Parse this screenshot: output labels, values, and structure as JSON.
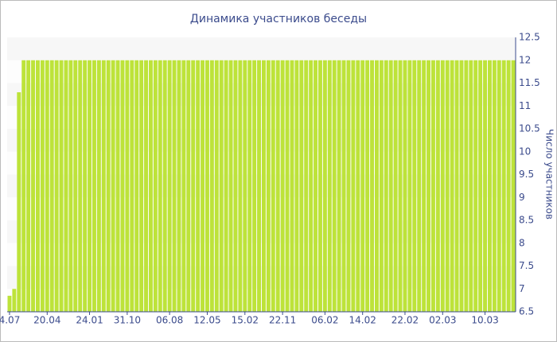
{
  "chart_data": {
    "type": "bar",
    "title": "Динамика участников беседы",
    "y_label": "Число участников",
    "categories": [
      "4.07",
      null,
      null,
      null,
      null,
      null,
      null,
      null,
      "20.04",
      null,
      null,
      null,
      null,
      null,
      null,
      null,
      null,
      "24.01",
      null,
      null,
      null,
      null,
      null,
      null,
      null,
      "31.10",
      null,
      null,
      null,
      null,
      null,
      null,
      null,
      null,
      "06.08",
      null,
      null,
      null,
      null,
      null,
      null,
      null,
      "12.05",
      null,
      null,
      null,
      null,
      null,
      null,
      null,
      "15.02",
      null,
      null,
      null,
      null,
      null,
      null,
      null,
      "22.11",
      null,
      null,
      null,
      null,
      null,
      null,
      null,
      null,
      "06.02",
      null,
      null,
      null,
      null,
      null,
      null,
      null,
      "14.02",
      null,
      null,
      null,
      null,
      null,
      null,
      null,
      null,
      "22.02",
      null,
      null,
      null,
      null,
      null,
      null,
      null,
      "02.03",
      null,
      null,
      null,
      null,
      null,
      null,
      null,
      null,
      "10.03",
      null,
      null,
      null,
      null,
      null,
      null
    ],
    "values": [
      6.85,
      7,
      11.3,
      12,
      12,
      12,
      12,
      12,
      12,
      12,
      12,
      12,
      12,
      12,
      12,
      12,
      12,
      12,
      12,
      12,
      12,
      12,
      12,
      12,
      12,
      12,
      12,
      12,
      12,
      12,
      12,
      12,
      12,
      12,
      12,
      12,
      12,
      12,
      12,
      12,
      12,
      12,
      12,
      12,
      12,
      12,
      12,
      12,
      12,
      12,
      12,
      12,
      12,
      12,
      12,
      12,
      12,
      12,
      12,
      12,
      12,
      12,
      12,
      12,
      12,
      12,
      12,
      12,
      12,
      12,
      12,
      12,
      12,
      12,
      12,
      12,
      12,
      12,
      12,
      12,
      12,
      12,
      12,
      12,
      12,
      12,
      12,
      12,
      12,
      12,
      12,
      12,
      12,
      12,
      12,
      12,
      12,
      12,
      12,
      12,
      12,
      12,
      12,
      12,
      12,
      12,
      12,
      12
    ],
    "color": "#bde33a",
    "ylim": [
      6.5,
      12.5
    ],
    "yticks": [
      6.5,
      7,
      7.5,
      8,
      8.5,
      9,
      9.5,
      10,
      10.5,
      11,
      11.5,
      12,
      12.5
    ],
    "grid": true
  }
}
